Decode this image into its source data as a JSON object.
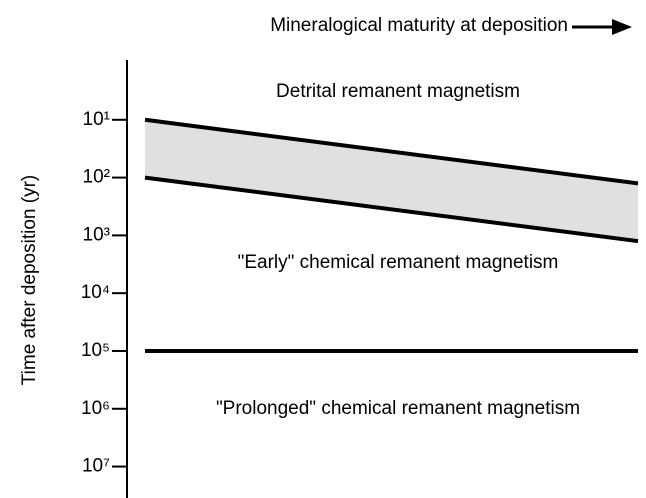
{
  "chart_data": {
    "type": "line",
    "xlabel": "Mineralogical maturity at deposition",
    "ylabel": "Time after deposition (yr)",
    "categories": [
      null,
      null
    ],
    "series": [
      {
        "color": "#000000",
        "values": [
          10,
          126
        ]
      },
      {
        "color": "#000000",
        "values": [
          100,
          1259
        ]
      },
      {
        "color": "#000000",
        "values": [
          100000,
          100000
        ]
      }
    ],
    "band_fill": "#e0e0e0",
    "yscale": "log",
    "yinverted": true,
    "ylim": [
      1,
      35000000
    ],
    "yticks": [
      {
        "value": 10,
        "label": "10¹"
      },
      {
        "value": 100,
        "label": "10²"
      },
      {
        "value": 1000,
        "label": "10³"
      },
      {
        "value": 10000,
        "label": "10⁴"
      },
      {
        "value": 100000,
        "label": "10⁵"
      },
      {
        "value": 1000000,
        "label": "10⁶"
      },
      {
        "value": 10000000,
        "label": "10⁷"
      }
    ],
    "annotations": [
      "Detrital remanent magnetism",
      "\"Early\" chemical remanent magnetism",
      "\"Prolonged\" chemical remanent magnetism"
    ]
  }
}
